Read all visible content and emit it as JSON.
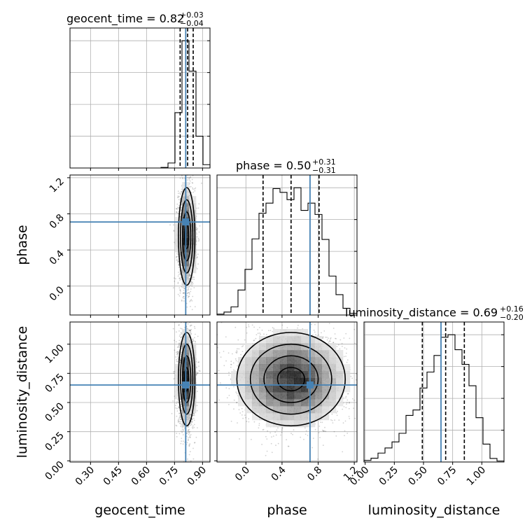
{
  "chart_data": {
    "type": "corner",
    "parameters": [
      "geocent_time",
      "phase",
      "luminosity_distance"
    ],
    "ranges": {
      "geocent_time": [
        0.19,
        0.94
      ],
      "phase": [
        -0.32,
        1.23
      ],
      "luminosity_distance": [
        -0.01,
        1.19
      ]
    },
    "truths": {
      "geocent_time": 0.81,
      "phase": 0.71,
      "luminosity_distance": 0.65
    },
    "truth_color": "#4682b4",
    "hist_color": "#000000",
    "grid": true,
    "titles": {
      "geocent_time": {
        "label": "geocent_time = 0.82",
        "plus": "+0.03",
        "minus": "−0.04"
      },
      "phase": {
        "label": "phase = 0.50",
        "plus": "+0.31",
        "minus": "−0.31"
      },
      "luminosity_distance": {
        "label": "luminosity_distance = 0.69",
        "plus": "+0.16",
        "minus": "−0.20"
      }
    },
    "quantiles": {
      "geocent_time": [
        0.78,
        0.82,
        0.85
      ],
      "phase": [
        0.19,
        0.5,
        0.81
      ],
      "luminosity_distance": [
        0.49,
        0.69,
        0.85
      ]
    },
    "ticks": {
      "geocent_time": [
        "0.30",
        "0.45",
        "0.60",
        "0.75",
        "0.90"
      ],
      "phase": [
        "0.0",
        "0.4",
        "0.8",
        "1.2"
      ],
      "luminosity_distance": [
        "0.00",
        "0.25",
        "0.50",
        "0.75",
        "1.00"
      ]
    },
    "hist1d": {
      "geocent_time": {
        "edges": [
          0.19,
          0.2275,
          0.265,
          0.3025,
          0.34,
          0.3775,
          0.415,
          0.4525,
          0.49,
          0.5275,
          0.565,
          0.6025,
          0.64,
          0.6775,
          0.715,
          0.7525,
          0.79,
          0.8275,
          0.865,
          0.9025,
          0.94
        ],
        "counts": [
          0,
          0,
          0,
          0,
          0,
          0,
          0,
          0,
          0,
          0,
          0,
          0,
          0,
          2,
          18,
          200,
          460,
          350,
          115,
          12
        ]
      },
      "phase": {
        "edges": [
          -0.32,
          -0.2425,
          -0.165,
          -0.0875,
          -0.01,
          0.0675,
          0.145,
          0.2225,
          0.3,
          0.3775,
          0.455,
          0.5325,
          0.61,
          0.6875,
          0.765,
          0.8425,
          0.92,
          0.9975,
          1.075,
          1.1525,
          1.23
        ],
        "counts": [
          3,
          10,
          28,
          86,
          157,
          262,
          350,
          385,
          435,
          422,
          397,
          438,
          360,
          385,
          346,
          260,
          134,
          70,
          23,
          6
        ]
      },
      "luminosity_distance": {
        "edges": [
          -0.01,
          0.05,
          0.11,
          0.17,
          0.23,
          0.29,
          0.35,
          0.41,
          0.47,
          0.53,
          0.59,
          0.65,
          0.71,
          0.77,
          0.83,
          0.89,
          0.95,
          1.01,
          1.07,
          1.13,
          1.19
        ],
        "counts": [
          5,
          12,
          28,
          44,
          63,
          90,
          146,
          163,
          232,
          282,
          334,
          391,
          399,
          352,
          306,
          239,
          139,
          56,
          11,
          3
        ]
      }
    }
  }
}
